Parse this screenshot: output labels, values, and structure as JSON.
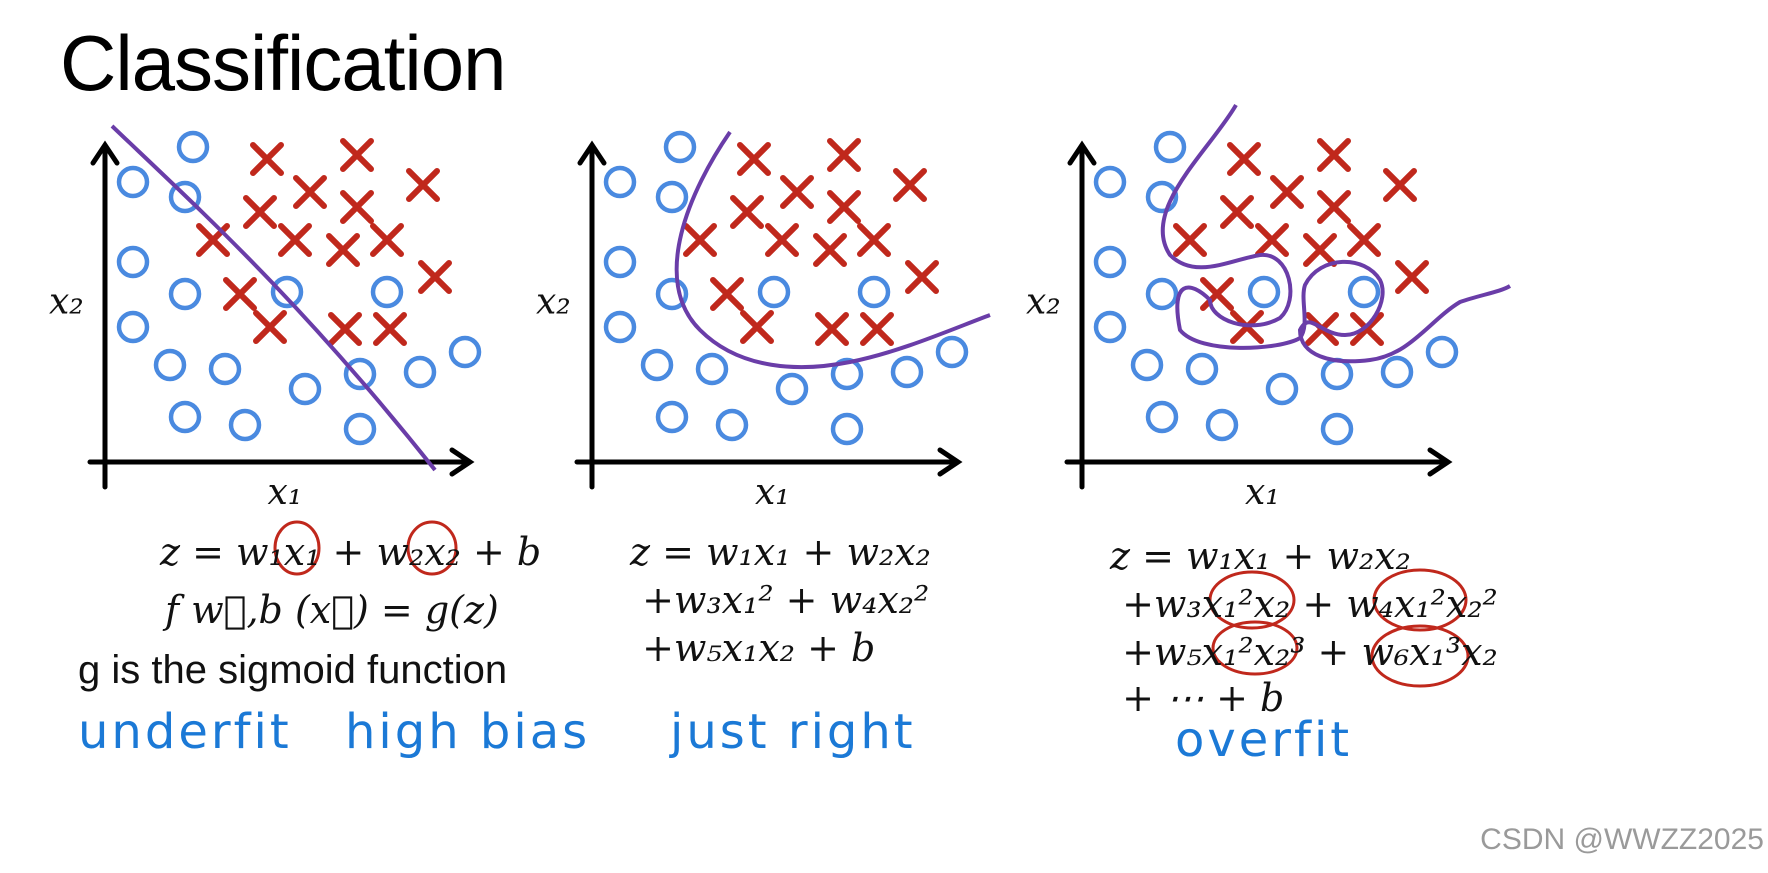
{
  "title": "Classification",
  "axes": {
    "x_label": "x₁",
    "y_label": "x₂"
  },
  "panels": [
    {
      "boundary": "linear",
      "equations": [
        "z = w₁x₁ + w₂x₂ + b",
        "f w⃗,b (x⃗) = g(z)"
      ],
      "note": "g is the sigmoid function",
      "handwritten": [
        "underfit",
        "high bias"
      ]
    },
    {
      "boundary": "quadratic",
      "equations": [
        "z = w₁x₁ + w₂x₂",
        " +w₃x₁² + w₄x₂²",
        " +w₅x₁x₂ + b"
      ],
      "handwritten": [
        "just right"
      ]
    },
    {
      "boundary": "high-order",
      "equations": [
        "z = w₁x₁ + w₂x₂",
        " +w₃x₁²x₂ + w₄x₁²x₂²",
        " +w₅x₁²x₂³ + w₆x₁³x₂",
        " + ⋯ + b"
      ],
      "handwritten": [
        "overfit"
      ]
    }
  ],
  "colors": {
    "circle": "#4a8ae0",
    "cross": "#c0281c",
    "boundary": "#6a3da8",
    "handwriting": "#1b79d6",
    "annotation": "#c0281c"
  },
  "watermark": "CSDN @WWZZ2025"
}
